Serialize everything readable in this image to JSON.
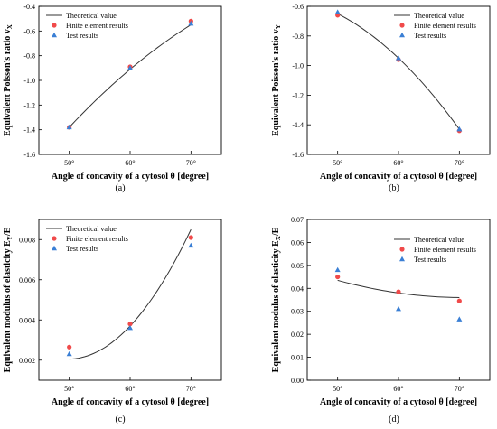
{
  "panel_labels": [
    "(a)",
    "(b)",
    "(c)",
    "(d)"
  ],
  "chart_data": [
    {
      "type": "line",
      "panel": "(a)",
      "xlabel": "Angle of concavity of a cytosol θ [degree]",
      "ylabel": "Equivalent Poisson's ratio v",
      "ylabel_sub": "X",
      "categories": [
        "50°",
        "60°",
        "70°"
      ],
      "x": [
        50,
        60,
        70
      ],
      "xlim": [
        45,
        75
      ],
      "ylim": [
        -1.6,
        -0.4
      ],
      "yticks": [
        "-1.6",
        "-1.4",
        "-1.2",
        "-1.0",
        "-0.8",
        "-0.6",
        "-0.4"
      ],
      "legend_position": "top-left",
      "series": [
        {
          "name": "Theoretical value",
          "kind": "line",
          "color": "#333333",
          "values": [
            -1.38,
            -0.91,
            -0.55
          ]
        },
        {
          "name": "Finite element results",
          "kind": "circle",
          "color": "#f04a4a",
          "values": [
            -1.38,
            -0.89,
            -0.52
          ]
        },
        {
          "name": "Test results",
          "kind": "triangle",
          "color": "#3a7fd5",
          "values": [
            -1.38,
            -0.9,
            -0.54
          ]
        }
      ]
    },
    {
      "type": "line",
      "panel": "(b)",
      "xlabel": "Angle of concavity of a cytosol θ [degree]",
      "ylabel": "Equivalent Poisson's ratio v",
      "ylabel_sub": "Y",
      "categories": [
        "50°",
        "60°",
        "70°"
      ],
      "x": [
        50,
        60,
        70
      ],
      "xlim": [
        45,
        75
      ],
      "ylim": [
        -1.6,
        -0.6
      ],
      "yticks": [
        "-1.6",
        "-1.4",
        "-1.2",
        "-1.0",
        "-0.8",
        "-0.6"
      ],
      "legend_position": "top-right",
      "series": [
        {
          "name": "Theoretical value",
          "kind": "line",
          "color": "#333333",
          "values": [
            -0.65,
            -0.95,
            -1.43
          ]
        },
        {
          "name": "Finite element results",
          "kind": "circle",
          "color": "#f04a4a",
          "values": [
            -0.66,
            -0.96,
            -1.44
          ]
        },
        {
          "name": "Test results",
          "kind": "triangle",
          "color": "#3a7fd5",
          "values": [
            -0.64,
            -0.95,
            -1.43
          ]
        }
      ]
    },
    {
      "type": "line",
      "panel": "(c)",
      "xlabel": "Angle of concavity of a cytosol θ [degree]",
      "ylabel": "Equivalent modulus of elasticity E",
      "ylabel_sub": "Y",
      "ylabel_suffix": "/E",
      "categories": [
        "50°",
        "60°",
        "70°"
      ],
      "x": [
        50,
        60,
        70
      ],
      "xlim": [
        45,
        75
      ],
      "ylim": [
        0.001,
        0.009
      ],
      "yticks": [
        "0.002",
        "0.004",
        "0.006",
        "0.008"
      ],
      "ytick_values": [
        0.002,
        0.004,
        0.006,
        0.008
      ],
      "legend_position": "top-left",
      "series": [
        {
          "name": "Theoretical value",
          "kind": "line",
          "color": "#333333",
          "values": [
            0.00205,
            0.0037,
            0.0085
          ]
        },
        {
          "name": "Finite element results",
          "kind": "circle",
          "color": "#f04a4a",
          "values": [
            0.00265,
            0.0038,
            0.0081
          ]
        },
        {
          "name": "Test results",
          "kind": "triangle",
          "color": "#3a7fd5",
          "values": [
            0.0023,
            0.0036,
            0.0077
          ]
        }
      ]
    },
    {
      "type": "line",
      "panel": "(d)",
      "xlabel": "Angle of concavity of a cytosol θ [degree]",
      "ylabel": "Equivalent modulus of elasticity E",
      "ylabel_sub": "X",
      "ylabel_suffix": "/E",
      "categories": [
        "50°",
        "60°",
        "70°"
      ],
      "x": [
        50,
        60,
        70
      ],
      "xlim": [
        45,
        75
      ],
      "ylim": [
        0,
        0.07
      ],
      "yticks": [
        "0.00",
        "0.01",
        "0.02",
        "0.03",
        "0.04",
        "0.05",
        "0.06",
        "0.07"
      ],
      "legend_position": "top-right",
      "series": [
        {
          "name": "Theoretical value",
          "kind": "line",
          "color": "#333333",
          "values": [
            0.0435,
            0.038,
            0.036
          ]
        },
        {
          "name": "Finite element results",
          "kind": "circle",
          "color": "#f04a4a",
          "values": [
            0.045,
            0.0385,
            0.0345
          ]
        },
        {
          "name": "Test results",
          "kind": "triangle",
          "color": "#3a7fd5",
          "values": [
            0.048,
            0.031,
            0.0265
          ]
        }
      ]
    }
  ]
}
